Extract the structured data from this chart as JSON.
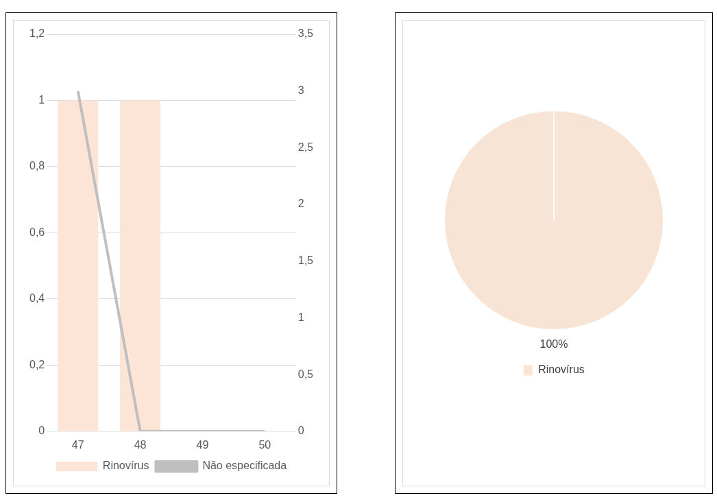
{
  "chart_data": [
    {
      "type": "bar",
      "categories": [
        "47",
        "48",
        "49",
        "50"
      ],
      "series": [
        {
          "name": "Rinovírus",
          "type": "bar",
          "color": "#fce4d6",
          "values": [
            1,
            1,
            0,
            0
          ]
        },
        {
          "name": "Não especificada",
          "type": "line",
          "axis": "y2",
          "color": "#bfbfbf",
          "values": [
            3,
            0,
            0,
            0
          ]
        }
      ],
      "ylim": [
        0,
        1.2
      ],
      "yticks": [
        0,
        {
          "value": 0.2,
          "label": "0,2"
        },
        {
          "value": 0.4,
          "label": "0,4"
        },
        {
          "value": 0.6,
          "label": "0,6"
        },
        {
          "value": 0.8,
          "label": "0,8"
        },
        1,
        {
          "value": 1.2,
          "label": "1,2"
        }
      ],
      "y2lim": [
        0,
        3.5
      ],
      "y2ticks": [
        0,
        {
          "value": 0.5,
          "label": "0,5"
        },
        1,
        {
          "value": 1.5,
          "label": "1,5"
        },
        2,
        {
          "value": 2.5,
          "label": "2,5"
        },
        3,
        {
          "value": 3.5,
          "label": "3,5"
        }
      ],
      "grid": "y",
      "legend": "bottom",
      "marker": "none"
    },
    {
      "type": "pie",
      "categories": [
        "Rinovírus"
      ],
      "values": [
        100
      ],
      "colors": [
        "#f8e4d4"
      ],
      "value_labels": [
        "100%"
      ],
      "legend": "bottom"
    }
  ]
}
